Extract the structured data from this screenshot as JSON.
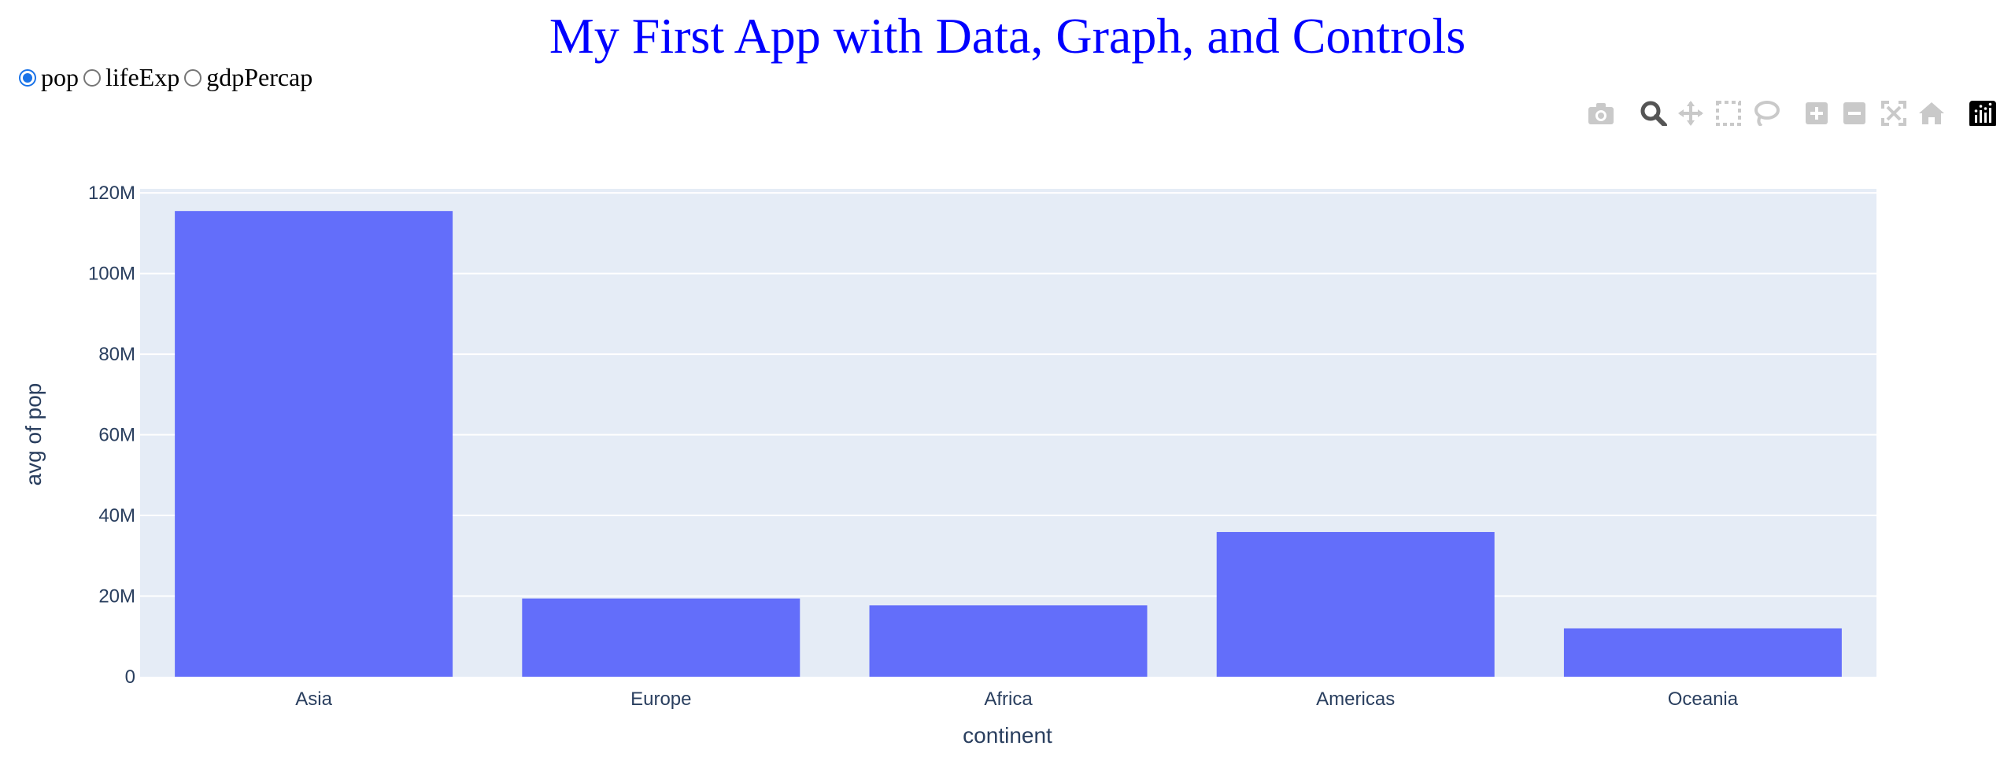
{
  "header": {
    "title": "My First App with Data, Graph, and Controls"
  },
  "controls": {
    "radio_options": [
      {
        "label": "pop",
        "checked": true
      },
      {
        "label": "lifeExp",
        "checked": false
      },
      {
        "label": "gdpPercap",
        "checked": false
      }
    ]
  },
  "modebar": {
    "icons": [
      "camera-icon",
      "zoom-icon",
      "pan-icon",
      "box-select-icon",
      "lasso-select-icon",
      "zoom-in-icon",
      "zoom-out-icon",
      "autoscale-icon",
      "reset-axes-icon",
      "plotly-logo-icon"
    ],
    "active": "zoom-icon"
  },
  "chart_data": {
    "type": "bar",
    "categories": [
      "Asia",
      "Europe",
      "Africa",
      "Americas",
      "Oceania"
    ],
    "values": [
      115500000,
      19400000,
      17700000,
      35900000,
      12000000
    ],
    "xlabel": "continent",
    "ylabel": "avg of pop",
    "ylim": [
      0,
      121000000
    ],
    "yticks": [
      0,
      20000000,
      40000000,
      60000000,
      80000000,
      100000000,
      120000000
    ],
    "ytick_labels": [
      "0",
      "20M",
      "40M",
      "60M",
      "80M",
      "100M",
      "120M"
    ],
    "bar_color": "#636efa",
    "plot_bg": "#e5ecf6",
    "grid": true
  }
}
